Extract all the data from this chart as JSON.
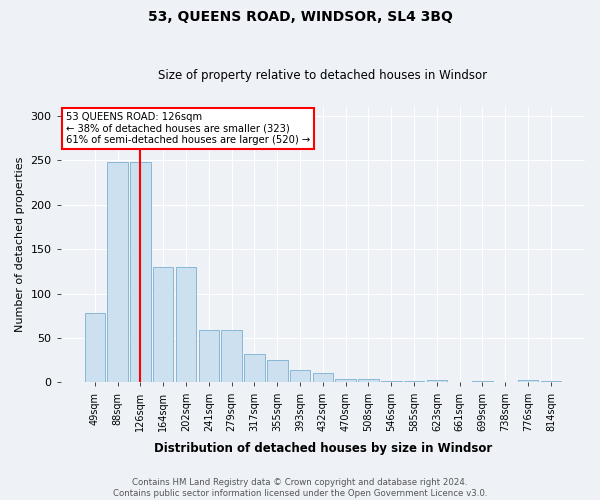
{
  "title": "53, QUEENS ROAD, WINDSOR, SL4 3BQ",
  "subtitle": "Size of property relative to detached houses in Windsor",
  "xlabel": "Distribution of detached houses by size in Windsor",
  "ylabel": "Number of detached properties",
  "categories": [
    "49sqm",
    "88sqm",
    "126sqm",
    "164sqm",
    "202sqm",
    "241sqm",
    "279sqm",
    "317sqm",
    "355sqm",
    "393sqm",
    "432sqm",
    "470sqm",
    "508sqm",
    "546sqm",
    "585sqm",
    "623sqm",
    "661sqm",
    "699sqm",
    "738sqm",
    "776sqm",
    "814sqm"
  ],
  "values": [
    78,
    248,
    248,
    130,
    130,
    59,
    59,
    32,
    25,
    14,
    11,
    4,
    4,
    2,
    2,
    3,
    1,
    2,
    1,
    3,
    2
  ],
  "bar_color": "#cce0f0",
  "bar_edge_color": "#7ab0d0",
  "red_line_x": 2,
  "annotation_title": "53 QUEENS ROAD: 126sqm",
  "annotation_line1": "← 38% of detached houses are smaller (323)",
  "annotation_line2": "61% of semi-detached houses are larger (520) →",
  "footer_line1": "Contains HM Land Registry data © Crown copyright and database right 2024.",
  "footer_line2": "Contains public sector information licensed under the Open Government Licence v3.0.",
  "ylim": [
    0,
    310
  ],
  "yticks": [
    0,
    50,
    100,
    150,
    200,
    250,
    300
  ],
  "background_color": "#eef2f7",
  "title_fontsize": 10,
  "subtitle_fontsize": 8.5
}
